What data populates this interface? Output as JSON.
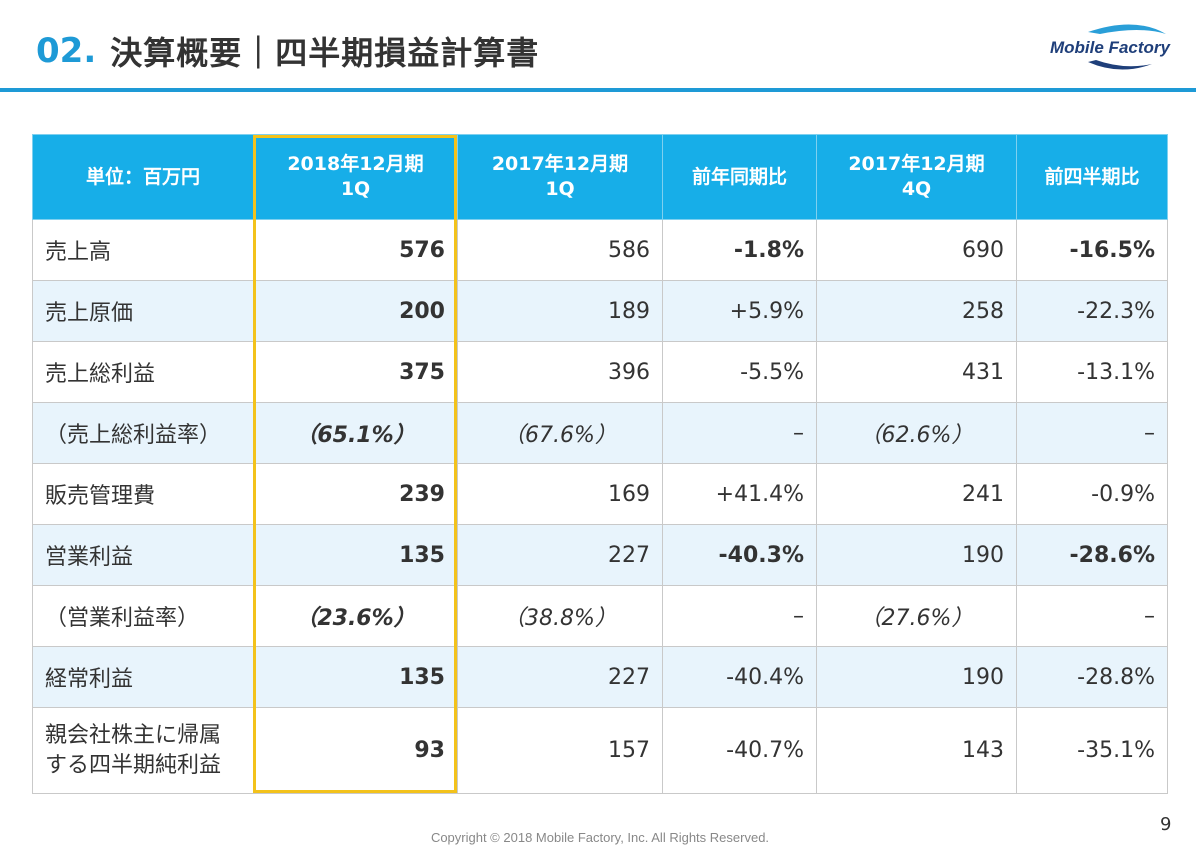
{
  "slide": {
    "title_number": "02.",
    "title_text": "決算概要｜四半期損益計算書",
    "logo_text": "Mobile Factory",
    "page_number": "9",
    "copyright": "Copyright © 2018 Mobile Factory, Inc. All Rights Reserved.",
    "colors": {
      "accent": "#1e9ad6",
      "header": "#17aee8",
      "highlight": "#f3c21b",
      "alt_row": "#e8f4fc"
    }
  },
  "table": {
    "headers": {
      "unit": "単位：百万円",
      "col1_line1": "2018年12月期",
      "col1_line2": "1Q",
      "col2_line1": "2017年12月期",
      "col2_line2": "1Q",
      "col3": "前年同期比",
      "col4_line1": "2017年12月期",
      "col4_line2": "4Q",
      "col5": "前四半期比"
    },
    "rows": [
      {
        "label": "売上高",
        "cur": "576",
        "prev_year": "586",
        "yoy": "-1.8%",
        "prev_q": "690",
        "qoq": "-16.5%"
      },
      {
        "label": "売上原価",
        "cur": "200",
        "prev_year": "189",
        "yoy": "+5.9%",
        "prev_q": "258",
        "qoq": "-22.3%"
      },
      {
        "label": "売上総利益",
        "cur": "375",
        "prev_year": "396",
        "yoy": "-5.5%",
        "prev_q": "431",
        "qoq": "-13.1%"
      },
      {
        "label": "（売上総利益率）",
        "cur": "（65.1%）",
        "prev_year": "（67.6%）",
        "yoy": "–",
        "prev_q": "（62.6%）",
        "qoq": "–"
      },
      {
        "label": "販売管理費",
        "cur": "239",
        "prev_year": "169",
        "yoy": "+41.4%",
        "prev_q": "241",
        "qoq": "-0.9%"
      },
      {
        "label": "営業利益",
        "cur": "135",
        "prev_year": "227",
        "yoy": "-40.3%",
        "prev_q": "190",
        "qoq": "-28.6%"
      },
      {
        "label": "（営業利益率）",
        "cur": "（23.6%）",
        "prev_year": "（38.8%）",
        "yoy": "–",
        "prev_q": "（27.6%）",
        "qoq": "–"
      },
      {
        "label": "経常利益",
        "cur": "135",
        "prev_year": "227",
        "yoy": "-40.4%",
        "prev_q": "190",
        "qoq": "-28.8%"
      },
      {
        "label_line1": "親会社株主に帰属",
        "label_line2": "する四半期純利益",
        "cur": "93",
        "prev_year": "157",
        "yoy": "-40.7%",
        "prev_q": "143",
        "qoq": "-35.1%"
      }
    ]
  }
}
